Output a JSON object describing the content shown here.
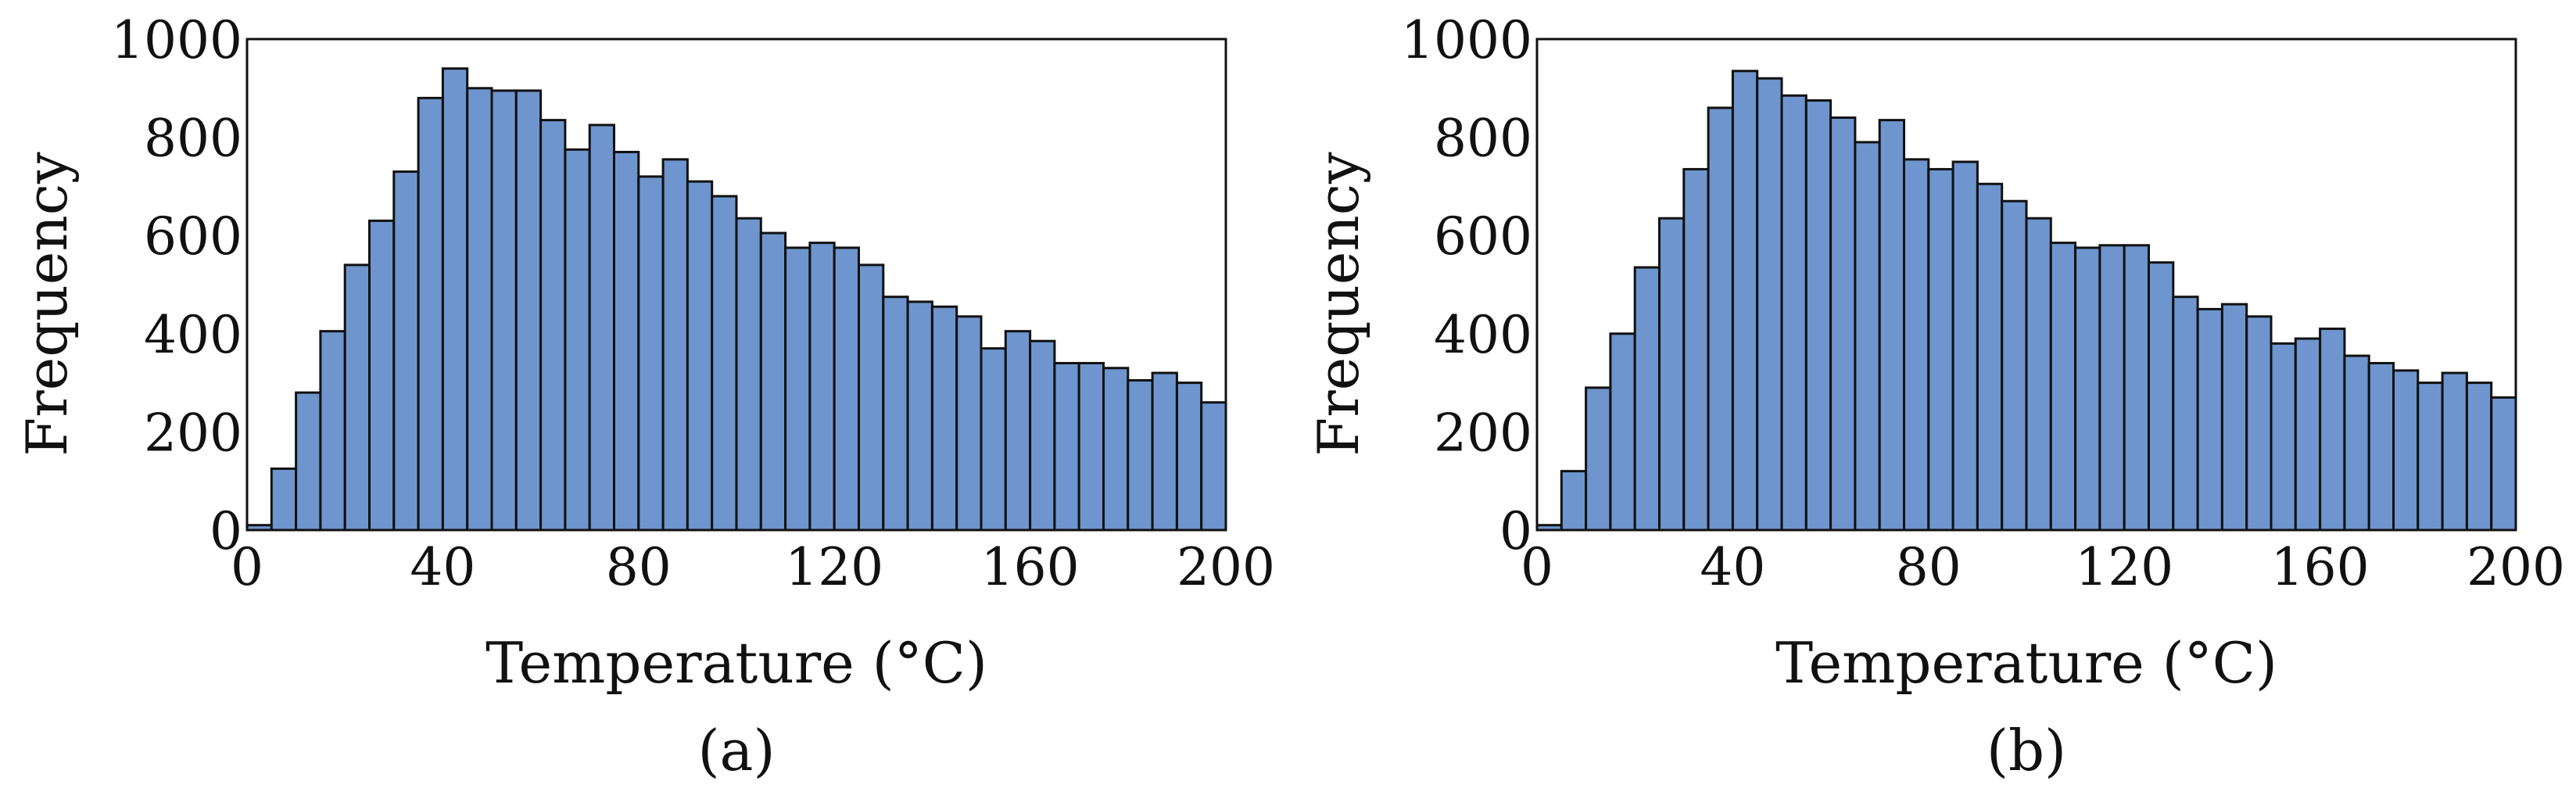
{
  "chart_data": [
    {
      "type": "bar",
      "caption": "(a)",
      "xlabel": "Temperature (°C)",
      "ylabel": "Frequency",
      "xlim": [
        0,
        200
      ],
      "ylim": [
        0,
        1000
      ],
      "xticks": [
        "0",
        "40",
        "80",
        "120",
        "160",
        "200"
      ],
      "yticks": [
        "0",
        "200",
        "400",
        "600",
        "800",
        "1000"
      ],
      "bin_width": 5,
      "bin_starts": [
        0,
        5,
        10,
        15,
        20,
        25,
        30,
        35,
        40,
        45,
        50,
        55,
        60,
        65,
        70,
        75,
        80,
        85,
        90,
        95,
        100,
        105,
        110,
        115,
        120,
        125,
        130,
        135,
        140,
        145,
        150,
        155,
        160,
        165,
        170,
        175,
        180,
        185,
        190,
        195
      ],
      "values": [
        10,
        125,
        280,
        405,
        540,
        630,
        730,
        880,
        940,
        900,
        895,
        895,
        835,
        775,
        825,
        770,
        720,
        755,
        710,
        680,
        635,
        605,
        575,
        585,
        575,
        540,
        475,
        465,
        455,
        435,
        370,
        405,
        385,
        340,
        340,
        330,
        305,
        320,
        300,
        260
      ],
      "bar_color": "#6e95cd",
      "edge_color": "#111111",
      "grid": false,
      "legend": "none"
    },
    {
      "type": "bar",
      "caption": "(b)",
      "xlabel": "Temperature (°C)",
      "ylabel": "Frequency",
      "xlim": [
        0,
        200
      ],
      "ylim": [
        0,
        1000
      ],
      "xticks": [
        "0",
        "40",
        "80",
        "120",
        "160",
        "200"
      ],
      "yticks": [
        "0",
        "200",
        "400",
        "600",
        "800",
        "1000"
      ],
      "bin_width": 5,
      "bin_starts": [
        0,
        5,
        10,
        15,
        20,
        25,
        30,
        35,
        40,
        45,
        50,
        55,
        60,
        65,
        70,
        75,
        80,
        85,
        90,
        95,
        100,
        105,
        110,
        115,
        120,
        125,
        130,
        135,
        140,
        145,
        150,
        155,
        160,
        165,
        170,
        175,
        180,
        185,
        190,
        195
      ],
      "values": [
        10,
        120,
        290,
        400,
        535,
        635,
        735,
        860,
        935,
        920,
        885,
        875,
        840,
        790,
        835,
        755,
        735,
        750,
        705,
        670,
        635,
        585,
        575,
        580,
        580,
        545,
        475,
        450,
        460,
        435,
        380,
        390,
        410,
        355,
        340,
        325,
        300,
        320,
        300,
        270
      ],
      "bar_color": "#6e95cd",
      "edge_color": "#111111",
      "grid": false,
      "legend": "none"
    }
  ]
}
